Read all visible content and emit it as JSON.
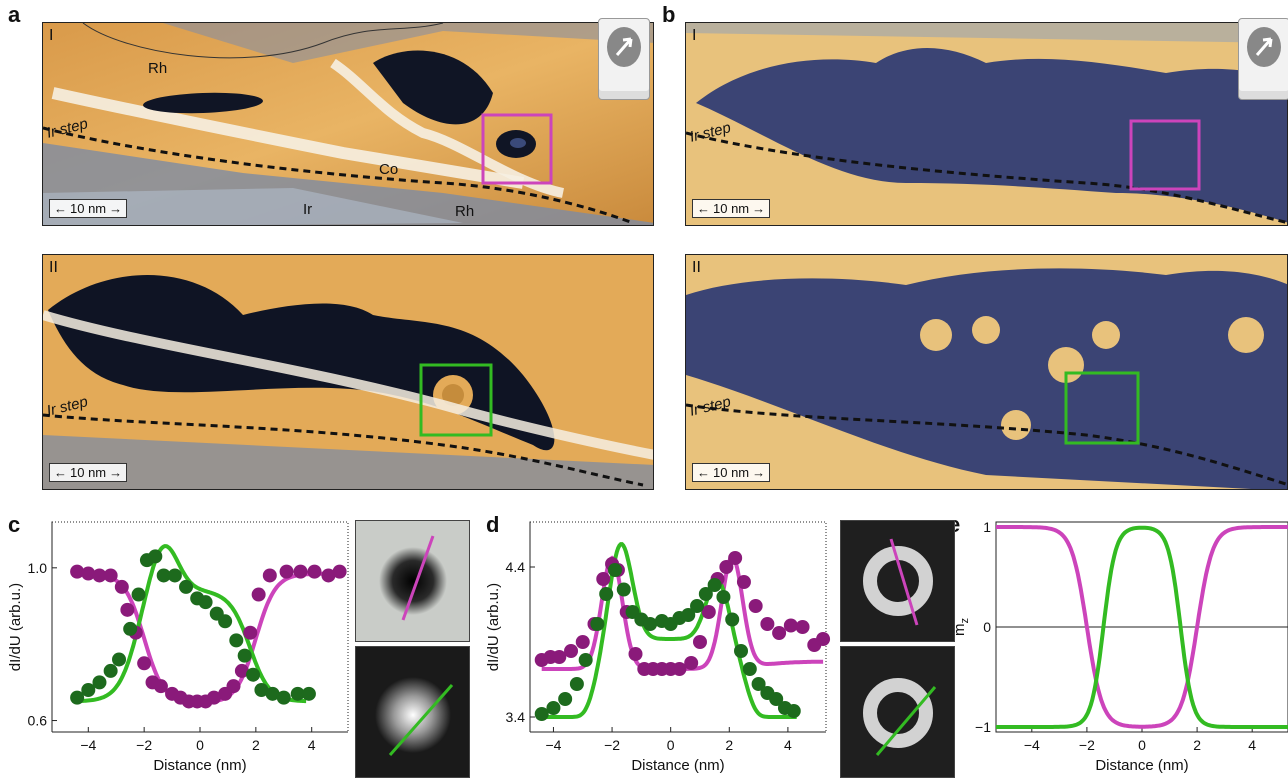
{
  "panel_labels": {
    "a": "a",
    "b": "b",
    "c": "c",
    "d": "d",
    "e": "e"
  },
  "stm": {
    "row1_label": "I",
    "row2_label": "II",
    "scale": "10 nm",
    "ir_step": "Ir step",
    "a1_labels": {
      "rh_top": "Rh",
      "co": "Co",
      "ir": "Ir",
      "rh_bottom": "Rh"
    }
  },
  "colors": {
    "magenta": "#cc44bb",
    "green": "#33bb22",
    "dark_purple": "#8a1a7a",
    "dark_green": "#1d6a1d"
  },
  "icons": {
    "tip": "stm-tip-icon"
  },
  "chart_data": [
    {
      "id": "c",
      "type": "scatter",
      "title": "",
      "xlabel": "Distance (nm)",
      "ylabel": "dI/dU (arb.u.)",
      "xlim": [
        -5.3,
        5.3
      ],
      "ylim": [
        0.57,
        1.12
      ],
      "xticks": [
        "−4",
        "−2",
        "0",
        "2",
        "4"
      ],
      "xtick_values": [
        -4,
        -2,
        0,
        2,
        4
      ],
      "yticks": [
        "0.6",
        "1.0"
      ],
      "ytick_values": [
        0.6,
        1.0
      ],
      "series": [
        {
          "color": "#8a1a7a",
          "points": [
            [
              -4.4,
              0.99
            ],
            [
              -4.0,
              0.985
            ],
            [
              -3.6,
              0.98
            ],
            [
              -3.2,
              0.98
            ],
            [
              -2.8,
              0.95
            ],
            [
              -2.6,
              0.89
            ],
            [
              -2.3,
              0.83
            ],
            [
              -2.0,
              0.75
            ],
            [
              -1.7,
              0.7
            ],
            [
              -1.4,
              0.69
            ],
            [
              -1.0,
              0.67
            ],
            [
              -0.7,
              0.66
            ],
            [
              -0.4,
              0.65
            ],
            [
              -0.1,
              0.65
            ],
            [
              0.2,
              0.65
            ],
            [
              0.5,
              0.66
            ],
            [
              0.9,
              0.67
            ],
            [
              1.2,
              0.69
            ],
            [
              1.5,
              0.73
            ],
            [
              1.8,
              0.83
            ],
            [
              2.1,
              0.93
            ],
            [
              2.5,
              0.98
            ],
            [
              3.1,
              0.99
            ],
            [
              3.6,
              0.99
            ],
            [
              4.1,
              0.99
            ],
            [
              4.6,
              0.98
            ],
            [
              5.0,
              0.99
            ]
          ]
        },
        {
          "color": "#1d6a1d",
          "points": [
            [
              -4.4,
              0.66
            ],
            [
              -4.0,
              0.68
            ],
            [
              -3.6,
              0.7
            ],
            [
              -3.2,
              0.73
            ],
            [
              -2.9,
              0.76
            ],
            [
              -2.5,
              0.84
            ],
            [
              -2.2,
              0.93
            ],
            [
              -1.9,
              1.02
            ],
            [
              -1.6,
              1.03
            ],
            [
              -1.3,
              0.98
            ],
            [
              -0.9,
              0.98
            ],
            [
              -0.5,
              0.95
            ],
            [
              -0.1,
              0.92
            ],
            [
              0.2,
              0.91
            ],
            [
              0.6,
              0.88
            ],
            [
              0.9,
              0.86
            ],
            [
              1.3,
              0.81
            ],
            [
              1.6,
              0.77
            ],
            [
              1.9,
              0.72
            ],
            [
              2.2,
              0.68
            ],
            [
              2.6,
              0.67
            ],
            [
              3.0,
              0.66
            ],
            [
              3.5,
              0.67
            ],
            [
              3.9,
              0.67
            ]
          ]
        }
      ],
      "fits": [
        {
          "color": "#cc44bb",
          "model": "dip",
          "base": 0.985,
          "depth": 0.34,
          "center": 0.0,
          "halfwidth": 2.0,
          "width": 0.35,
          "xrange": [
            -4.4,
            5.0
          ]
        },
        {
          "color": "#33bb22",
          "model": "skyrmion_green_c",
          "xrange": [
            -4.3,
            3.8
          ]
        }
      ]
    },
    {
      "id": "d",
      "type": "scatter",
      "title": "",
      "xlabel": "Distance (nm)",
      "ylabel": "dI/dU (arb.u.)",
      "xlim": [
        -4.8,
        5.3
      ],
      "ylim": [
        3.3,
        4.7
      ],
      "xticks": [
        "−4",
        "−2",
        "0",
        "2",
        "4"
      ],
      "xtick_values": [
        -4,
        -2,
        0,
        2,
        4
      ],
      "yticks": [
        "3.4",
        "4.4"
      ],
      "ytick_values": [
        3.4,
        4.4
      ],
      "series": [
        {
          "color": "#8a1a7a",
          "points": [
            [
              -4.4,
              3.78
            ],
            [
              -4.1,
              3.8
            ],
            [
              -3.8,
              3.8
            ],
            [
              -3.4,
              3.84
            ],
            [
              -3.0,
              3.9
            ],
            [
              -2.6,
              4.02
            ],
            [
              -2.3,
              4.32
            ],
            [
              -2.0,
              4.42
            ],
            [
              -1.8,
              4.38
            ],
            [
              -1.5,
              4.1
            ],
            [
              -1.2,
              3.82
            ],
            [
              -0.9,
              3.72
            ],
            [
              -0.6,
              3.72
            ],
            [
              -0.3,
              3.72
            ],
            [
              0.0,
              3.72
            ],
            [
              0.3,
              3.72
            ],
            [
              0.7,
              3.76
            ],
            [
              1.0,
              3.9
            ],
            [
              1.3,
              4.1
            ],
            [
              1.6,
              4.32
            ],
            [
              1.9,
              4.4
            ],
            [
              2.2,
              4.46
            ],
            [
              2.5,
              4.3
            ],
            [
              2.9,
              4.14
            ],
            [
              3.3,
              4.02
            ],
            [
              3.7,
              3.96
            ],
            [
              4.1,
              4.01
            ],
            [
              4.5,
              4.0
            ],
            [
              4.9,
              3.88
            ],
            [
              5.2,
              3.92
            ]
          ]
        },
        {
          "color": "#1d6a1d",
          "points": [
            [
              -4.4,
              3.42
            ],
            [
              -4.0,
              3.46
            ],
            [
              -3.6,
              3.52
            ],
            [
              -3.2,
              3.62
            ],
            [
              -2.9,
              3.78
            ],
            [
              -2.5,
              4.02
            ],
            [
              -2.2,
              4.22
            ],
            [
              -1.9,
              4.38
            ],
            [
              -1.6,
              4.25
            ],
            [
              -1.3,
              4.1
            ],
            [
              -1.0,
              4.05
            ],
            [
              -0.7,
              4.02
            ],
            [
              -0.3,
              4.04
            ],
            [
              0.0,
              4.02
            ],
            [
              0.3,
              4.06
            ],
            [
              0.6,
              4.08
            ],
            [
              0.9,
              4.14
            ],
            [
              1.2,
              4.22
            ],
            [
              1.5,
              4.28
            ],
            [
              1.8,
              4.2
            ],
            [
              2.1,
              4.05
            ],
            [
              2.4,
              3.84
            ],
            [
              2.7,
              3.72
            ],
            [
              3.0,
              3.62
            ],
            [
              3.3,
              3.56
            ],
            [
              3.6,
              3.52
            ],
            [
              3.9,
              3.46
            ],
            [
              4.2,
              3.44
            ]
          ]
        }
      ],
      "fits": [
        {
          "color": "#cc44bb",
          "model": "double_peak",
          "xrange": [
            -4.4,
            5.2
          ]
        },
        {
          "color": "#33bb22",
          "model": "double_peak_green",
          "xrange": [
            -4.4,
            4.3
          ]
        }
      ]
    },
    {
      "id": "e",
      "type": "line",
      "title": "",
      "xlabel": "Distance (nm)",
      "ylabel": "m",
      "ylabel_sub": "z",
      "xlim": [
        -5.3,
        5.3
      ],
      "ylim": [
        -1.05,
        1.05
      ],
      "xticks": [
        "−4",
        "−2",
        "0",
        "2",
        "4"
      ],
      "xtick_values": [
        -4,
        -2,
        0,
        2,
        4
      ],
      "yticks": [
        "−1",
        "0",
        "1"
      ],
      "ytick_values": [
        -1,
        0,
        1
      ],
      "series": [
        {
          "color": "#cc44bb",
          "model": "mz_magenta",
          "xrange": [
            -5.3,
            5.3
          ]
        },
        {
          "color": "#33bb22",
          "model": "mz_green",
          "xrange": [
            -5.3,
            5.3
          ]
        }
      ]
    }
  ]
}
